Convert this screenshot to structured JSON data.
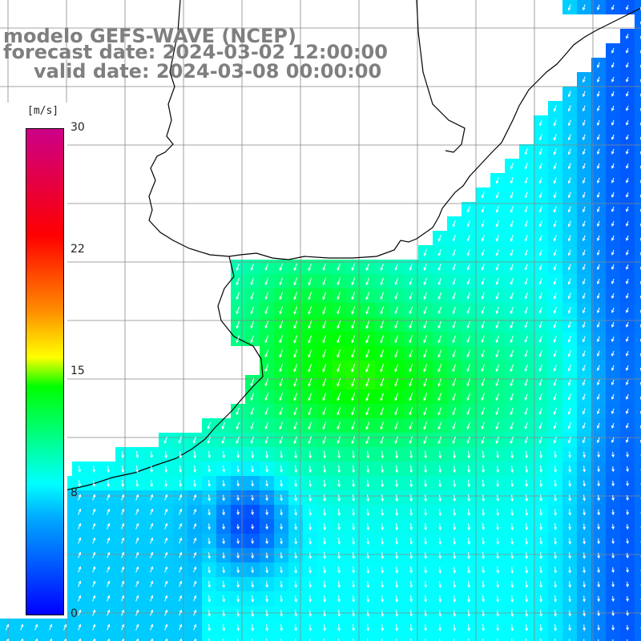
{
  "title": {
    "line1": "modelo GEFS-WAVE (NCEP)",
    "line2": "forecast date: 2024-03-02 12:00:00",
    "line3": "valid date: 2024-03-08 00:00:00"
  },
  "colorbar": {
    "unit": "[m/s]",
    "ticks": [
      "30",
      "22",
      "15",
      "8",
      "0"
    ],
    "min": 0,
    "max": 30,
    "colors": {
      "low": "#0000ff",
      "mid_low": "#00ffff",
      "mid": "#00ff00",
      "mid_high": "#ffff00",
      "high": "#ff0000",
      "top": "#cc0088"
    }
  },
  "map": {
    "variable": "wind speed and direction",
    "land_color": "#ffffff",
    "grid_color": "#888888",
    "coastline_color": "#000000",
    "arrow_color": "#ffffff"
  }
}
